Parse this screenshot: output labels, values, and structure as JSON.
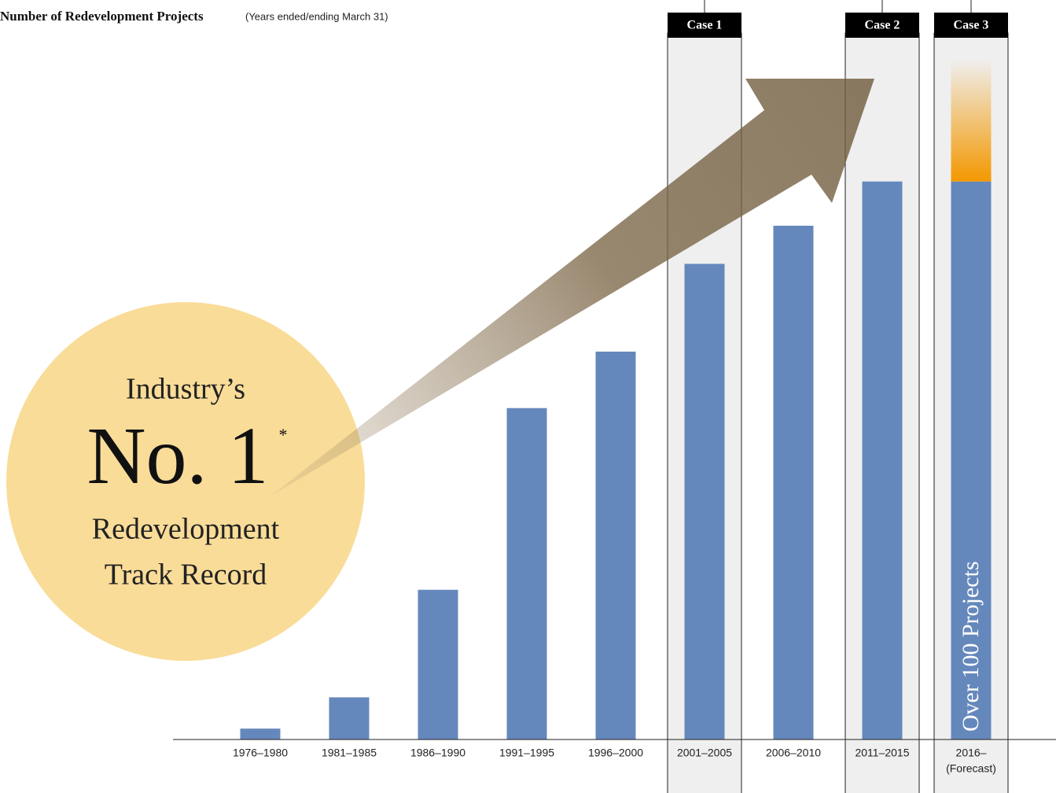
{
  "chart_data": {
    "type": "bar",
    "title": "Number of Redevelopment Projects",
    "subtitle": "(Years ended/ending March 31)",
    "categories": [
      [
        "1976–1980"
      ],
      [
        "1981–1985"
      ],
      [
        "1986–1990"
      ],
      [
        "1991–1995"
      ],
      [
        "1996–2000"
      ],
      [
        "2001–2005"
      ],
      [
        "2006–2010"
      ],
      [
        "2011–2015"
      ],
      [
        "2016–",
        "(Forecast)"
      ]
    ],
    "values": [
      1.6,
      6.2,
      22.0,
      48.7,
      57.0,
      69.9,
      75.5,
      82.0,
      82.0
    ],
    "forecast_values": [
      null,
      null,
      null,
      null,
      null,
      null,
      null,
      null,
      18.0
    ],
    "color": "#6588bc",
    "forecast_color": "#f39800",
    "ylim": [
      0,
      100
    ],
    "cases": [
      {
        "label": "Case 1",
        "index": 5
      },
      {
        "label": "Case 2",
        "index": 7
      },
      {
        "label": "Case 3",
        "index": 8
      }
    ],
    "bar_annotation": {
      "text": "Over 100 Projects",
      "index": 8
    },
    "badge": {
      "line1": "Industry’s",
      "rank": "No. 1",
      "mark": "*",
      "line3": "Redevelopment",
      "line4": "Track Record"
    }
  }
}
